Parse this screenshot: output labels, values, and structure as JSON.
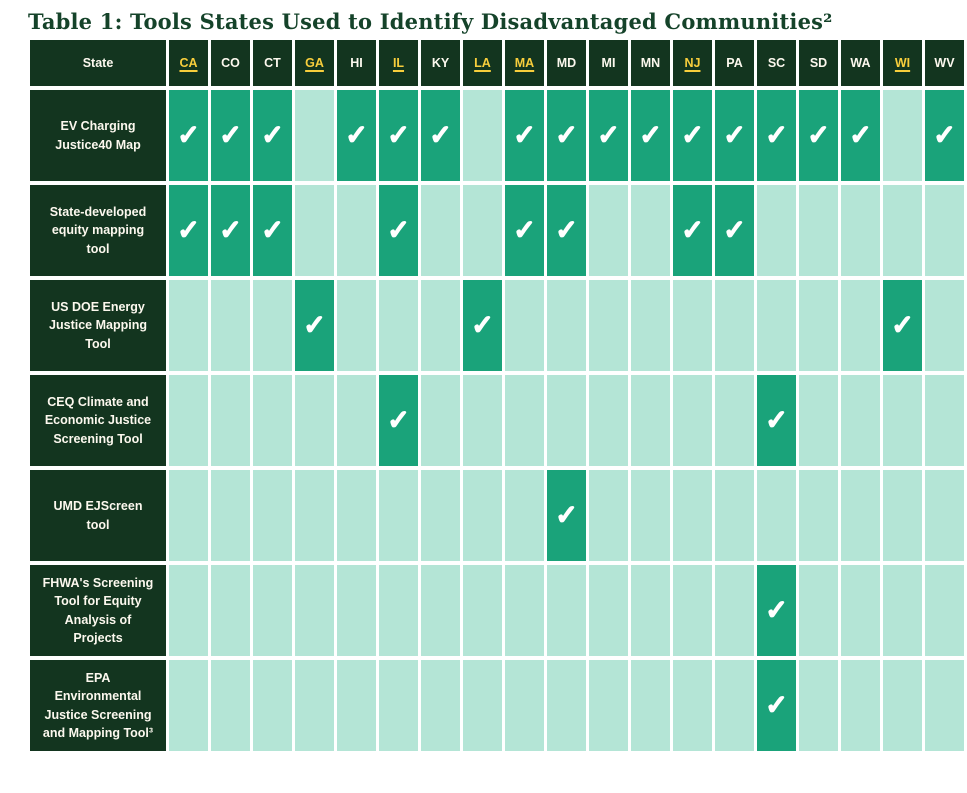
{
  "title": "Table 1: Tools States Used to Identify Disadvantaged Communities²",
  "colors": {
    "title_color": "#15432a",
    "header_bg": "#13351f",
    "checked_cell": "#1aa37a",
    "empty_cell": "#b4e5d6",
    "link_color": "#f8ce3c",
    "header_text": "#fcf8ee",
    "check_color": "#ffffff"
  },
  "icons": {
    "check": "✓"
  },
  "table": {
    "state_column_header": "State",
    "states": [
      {
        "code": "CA",
        "linked": true
      },
      {
        "code": "CO",
        "linked": false
      },
      {
        "code": "CT",
        "linked": false
      },
      {
        "code": "GA",
        "linked": true
      },
      {
        "code": "HI",
        "linked": false
      },
      {
        "code": "IL",
        "linked": true
      },
      {
        "code": "KY",
        "linked": false
      },
      {
        "code": "LA",
        "linked": true
      },
      {
        "code": "MA",
        "linked": true
      },
      {
        "code": "MD",
        "linked": false
      },
      {
        "code": "MI",
        "linked": false
      },
      {
        "code": "MN",
        "linked": false
      },
      {
        "code": "NJ",
        "linked": true
      },
      {
        "code": "PA",
        "linked": false
      },
      {
        "code": "SC",
        "linked": false
      },
      {
        "code": "SD",
        "linked": false
      },
      {
        "code": "WA",
        "linked": false
      },
      {
        "code": "WI",
        "linked": true
      },
      {
        "code": "WV",
        "linked": false
      }
    ],
    "rows": [
      {
        "tool": "EV Charging Justice40 Map",
        "checked": [
          "CA",
          "CO",
          "CT",
          "HI",
          "IL",
          "KY",
          "MA",
          "MD",
          "MI",
          "MN",
          "NJ",
          "PA",
          "SC",
          "SD",
          "WA",
          "WV"
        ]
      },
      {
        "tool": "State-developed equity mapping tool",
        "checked": [
          "CA",
          "CO",
          "CT",
          "IL",
          "MA",
          "MD",
          "NJ",
          "PA"
        ]
      },
      {
        "tool": "US DOE Energy Justice Mapping Tool",
        "checked": [
          "GA",
          "LA",
          "WI"
        ]
      },
      {
        "tool": "CEQ Climate and Economic Justice Screening Tool",
        "checked": [
          "IL",
          "SC"
        ]
      },
      {
        "tool": "UMD EJScreen tool",
        "checked": [
          "MD"
        ]
      },
      {
        "tool": "FHWA's Screening Tool for Equity Analysis of Projects",
        "checked": [
          "SC"
        ]
      },
      {
        "tool": "EPA Environmental Justice Screening and Mapping Tool³",
        "checked": [
          "SC"
        ]
      }
    ]
  }
}
